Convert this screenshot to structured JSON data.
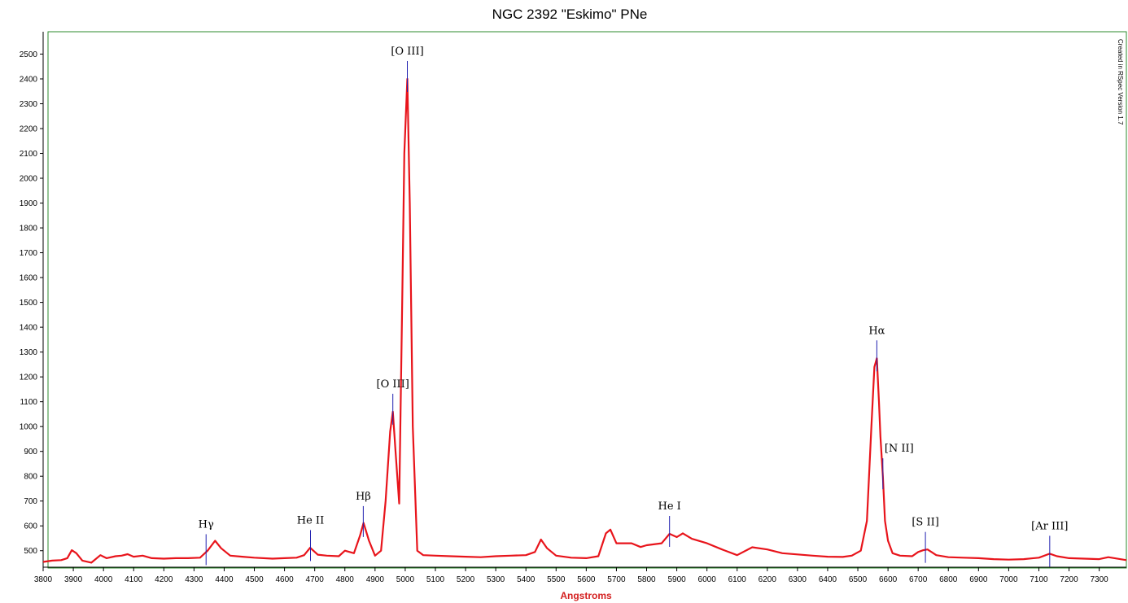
{
  "chart_data": {
    "type": "line",
    "title": "NGC 2392 \"Eskimo\" PNe",
    "xlabel": "Angstroms",
    "ylabel": "",
    "xlim": [
      3800,
      7390
    ],
    "ylim": [
      450,
      2590
    ],
    "x_ticks": [
      3800,
      3900,
      4000,
      4100,
      4200,
      4300,
      4400,
      4500,
      4600,
      4700,
      4800,
      4900,
      5000,
      5100,
      5200,
      5300,
      5400,
      5500,
      5600,
      5700,
      5800,
      5900,
      6000,
      6100,
      6200,
      6300,
      6400,
      6500,
      6600,
      6700,
      6800,
      6900,
      7000,
      7100,
      7200,
      7300
    ],
    "y_ticks": [
      500,
      600,
      700,
      800,
      900,
      1000,
      1100,
      1200,
      1300,
      1400,
      1500,
      1600,
      1700,
      1800,
      1900,
      2000,
      2100,
      2200,
      2300,
      2400,
      2500
    ],
    "grid": false,
    "watermark": "Created in RSpec Version 1.7",
    "colors": {
      "spectrum": "#e8141b",
      "marker": "#1f1fb0",
      "frame": "#2e8b2e",
      "xlabel": "#d42020"
    },
    "series": [
      {
        "x": [
          3800,
          3830,
          3860,
          3880,
          3895,
          3910,
          3930,
          3960,
          3990,
          4010,
          4040,
          4060,
          4080,
          4100,
          4130,
          4160,
          4200,
          4240,
          4280,
          4320,
          4345,
          4370,
          4390,
          4420,
          4460,
          4500,
          4560,
          4600,
          4640,
          4665,
          4685,
          4710,
          4740,
          4780,
          4800,
          4830,
          4850,
          4862,
          4880,
          4900,
          4920,
          4935,
          4950,
          4959,
          4968,
          4980,
          4990,
          4997,
          5007,
          5015,
          5025,
          5040,
          5060,
          5100,
          5150,
          5200,
          5250,
          5300,
          5350,
          5400,
          5430,
          5450,
          5470,
          5500,
          5550,
          5600,
          5640,
          5665,
          5680,
          5700,
          5720,
          5750,
          5780,
          5800,
          5850,
          5876,
          5900,
          5920,
          5950,
          6000,
          6050,
          6100,
          6150,
          6200,
          6250,
          6300,
          6350,
          6400,
          6450,
          6480,
          6510,
          6530,
          6545,
          6555,
          6563,
          6570,
          6575,
          6583,
          6590,
          6600,
          6615,
          6640,
          6680,
          6700,
          6717,
          6731,
          6760,
          6800,
          6850,
          6900,
          6950,
          7000,
          7050,
          7100,
          7136,
          7160,
          7200,
          7250,
          7300,
          7330,
          7390
        ],
        "y": [
          455,
          460,
          462,
          470,
          502,
          490,
          460,
          452,
          482,
          470,
          478,
          480,
          486,
          476,
          480,
          470,
          468,
          470,
          470,
          472,
          500,
          540,
          510,
          480,
          476,
          472,
          468,
          470,
          472,
          482,
          512,
          484,
          480,
          478,
          500,
          490,
          560,
          612,
          540,
          480,
          500,
          700,
          980,
          1060,
          900,
          690,
          1500,
          2100,
          2400,
          1900,
          1000,
          500,
          482,
          480,
          478,
          476,
          474,
          478,
          480,
          482,
          495,
          545,
          510,
          480,
          472,
          470,
          478,
          570,
          585,
          530,
          530,
          530,
          515,
          522,
          530,
          568,
          555,
          570,
          548,
          530,
          505,
          482,
          514,
          505,
          490,
          485,
          480,
          476,
          475,
          480,
          500,
          620,
          1000,
          1240,
          1275,
          1100,
          960,
          800,
          620,
          540,
          490,
          480,
          478,
          495,
          502,
          505,
          482,
          474,
          472,
          470,
          466,
          464,
          466,
          472,
          488,
          478,
          470,
          468,
          466,
          474,
          462
        ]
      }
    ],
    "annotations": [
      {
        "label": "[O III]",
        "x": 5007
      },
      {
        "label": "[O III]",
        "x": 4959
      },
      {
        "label": "Hα",
        "x": 6563
      },
      {
        "label": "[N II]",
        "x": 6583
      },
      {
        "label": "Hβ",
        "x": 4861
      },
      {
        "label": "He I",
        "x": 5876
      },
      {
        "label": "He II",
        "x": 4686
      },
      {
        "label": "Hγ",
        "x": 4340
      },
      {
        "label": "[S II]",
        "x": 6724
      },
      {
        "label": "[Ar III]",
        "x": 7136
      }
    ]
  }
}
